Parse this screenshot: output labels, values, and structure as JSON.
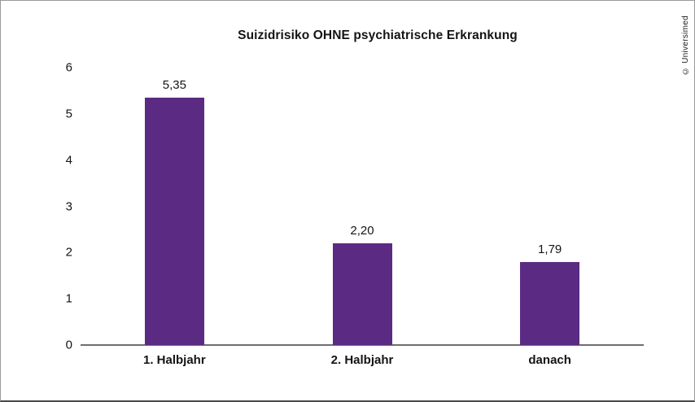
{
  "credit": "© Universimed",
  "chart_data": {
    "type": "bar",
    "title": "Suizidrisiko OHNE psychiatrische Erkrankung",
    "categories": [
      "1. Halbjahr",
      "2. Halbjahr",
      "danach"
    ],
    "values": [
      5.35,
      2.2,
      1.79
    ],
    "value_labels": [
      "5,35",
      "2,20",
      "1,79"
    ],
    "xlabel": "",
    "ylabel": "",
    "ylim": [
      0,
      6
    ],
    "y_ticks": [
      0,
      1,
      2,
      3,
      4,
      5,
      6
    ],
    "grid": false,
    "legend": "none",
    "bar_color": "#5b2a82",
    "axis_color": "#6e6e6e",
    "text_color": "#141414"
  }
}
